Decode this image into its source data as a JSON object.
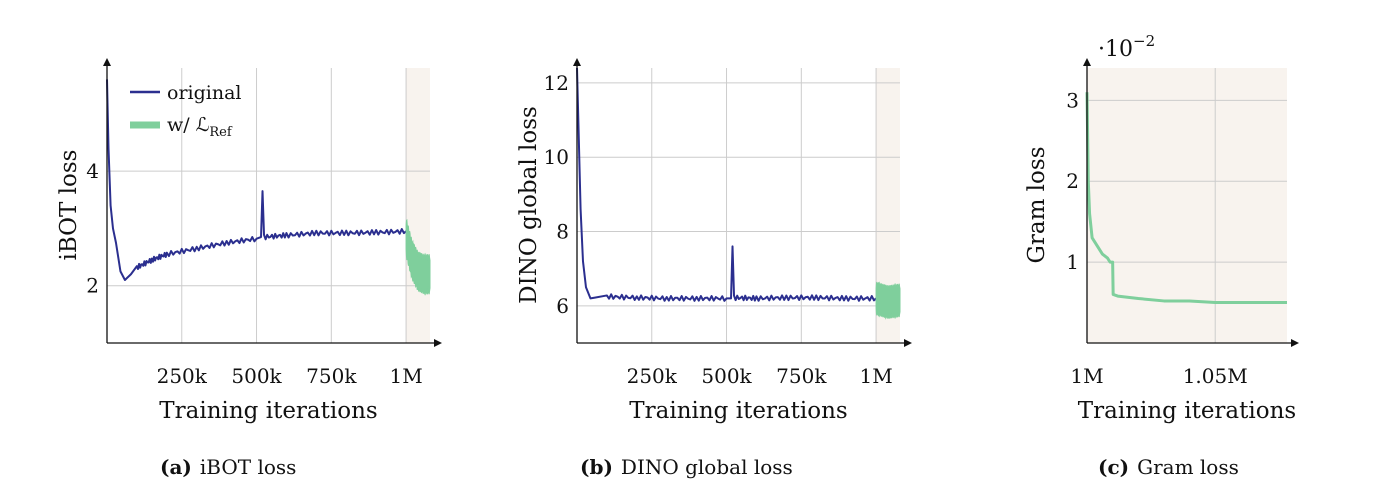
{
  "colors": {
    "original": "#2b2f8f",
    "with_ref": "#7fcf9c",
    "refine_bg": "#f8f3ee",
    "grid": "#cccccc",
    "axis": "#111111"
  },
  "captions": [
    {
      "label": "(a)",
      "text": "iBOT loss"
    },
    {
      "label": "(b)",
      "text": "DINO global loss"
    },
    {
      "label": "(c)",
      "text": "Gram loss"
    }
  ],
  "chart_data": [
    {
      "type": "line",
      "ylabel": "iBOT loss",
      "xlabel": "Training iterations",
      "x_ticks": [
        250000,
        500000,
        750000,
        1000000
      ],
      "x_tick_labels": [
        "250k",
        "500k",
        "750k",
        "1M"
      ],
      "y_ticks": [
        2,
        4
      ],
      "y_tick_labels": [
        "2",
        "4"
      ],
      "xlim": [
        0,
        1080000
      ],
      "ylim": [
        1,
        5.8
      ],
      "grid": true,
      "shaded_region_x": [
        1000000,
        1080000
      ],
      "legend": {
        "placement": "top-left",
        "entries": [
          "original",
          "w/ ℒ"
        ],
        "ref_subscript": "Ref"
      },
      "series": [
        {
          "name": "original",
          "x": [
            0,
            5000,
            12000,
            20000,
            30000,
            45000,
            60000,
            80000,
            100000,
            150000,
            200000,
            300000,
            400000,
            500000,
            515000,
            520000,
            525000,
            600000,
            700000,
            800000,
            900000,
            1000000
          ],
          "y": [
            5.6,
            4.4,
            3.4,
            3.0,
            2.75,
            2.25,
            2.1,
            2.2,
            2.32,
            2.45,
            2.55,
            2.65,
            2.75,
            2.82,
            2.85,
            3.65,
            2.85,
            2.88,
            2.92,
            2.92,
            2.93,
            2.95
          ]
        },
        {
          "name": "w/ ℒ_Ref",
          "x": [
            1000000,
            1020000,
            1040000,
            1060000,
            1080000
          ],
          "y": [
            2.85,
            2.45,
            2.25,
            2.2,
            2.2
          ],
          "band": 0.35
        }
      ]
    },
    {
      "type": "line",
      "ylabel": "DINO global loss",
      "xlabel": "Training iterations",
      "x_ticks": [
        250000,
        500000,
        750000,
        1000000
      ],
      "x_tick_labels": [
        "250k",
        "500k",
        "750k",
        "1M"
      ],
      "y_ticks": [
        6,
        8,
        10,
        12
      ],
      "y_tick_labels": [
        "6",
        "8",
        "10",
        "12"
      ],
      "xlim": [
        0,
        1080000
      ],
      "ylim": [
        5,
        12.4
      ],
      "grid": true,
      "shaded_region_x": [
        1000000,
        1080000
      ],
      "series": [
        {
          "name": "original",
          "x": [
            0,
            6000,
            12000,
            20000,
            30000,
            45000,
            60000,
            100000,
            200000,
            300000,
            400000,
            500000,
            515000,
            520000,
            525000,
            600000,
            700000,
            800000,
            900000,
            1000000
          ],
          "y": [
            12.4,
            10.5,
            8.6,
            7.2,
            6.5,
            6.2,
            6.22,
            6.25,
            6.22,
            6.2,
            6.2,
            6.2,
            6.2,
            7.6,
            6.22,
            6.2,
            6.22,
            6.22,
            6.2,
            6.2
          ]
        },
        {
          "name": "w/ ℒ_Ref",
          "x": [
            1000000,
            1040000,
            1080000
          ],
          "y": [
            6.2,
            6.1,
            6.15
          ],
          "band": 0.45
        }
      ]
    },
    {
      "type": "line",
      "ylabel": "Gram loss",
      "xlabel": "Training iterations",
      "x_ticks": [
        1000000,
        1050000
      ],
      "x_tick_labels": [
        "1M",
        "1.05M"
      ],
      "y_ticks": [
        1,
        2,
        3
      ],
      "y_tick_labels": [
        "1",
        "2",
        "3"
      ],
      "y_scale_label": "·10",
      "y_scale_exponent": "−2",
      "xlim": [
        1000000,
        1078000
      ],
      "ylim": [
        0,
        3.4
      ],
      "grid": true,
      "shaded_region_x": [
        1000000,
        1078000
      ],
      "series": [
        {
          "name": "w/ ℒ_Ref",
          "x": [
            1000000,
            1000500,
            1001000,
            1002000,
            1004000,
            1006000,
            1008000,
            1009000,
            1010000,
            1010200,
            1012000,
            1020000,
            1030000,
            1040000,
            1050000,
            1060000,
            1070000,
            1078000
          ],
          "y": [
            3.1,
            2.0,
            1.6,
            1.3,
            1.2,
            1.1,
            1.05,
            1.0,
            1.0,
            0.6,
            0.58,
            0.55,
            0.52,
            0.52,
            0.5,
            0.5,
            0.5,
            0.5
          ]
        }
      ]
    }
  ]
}
